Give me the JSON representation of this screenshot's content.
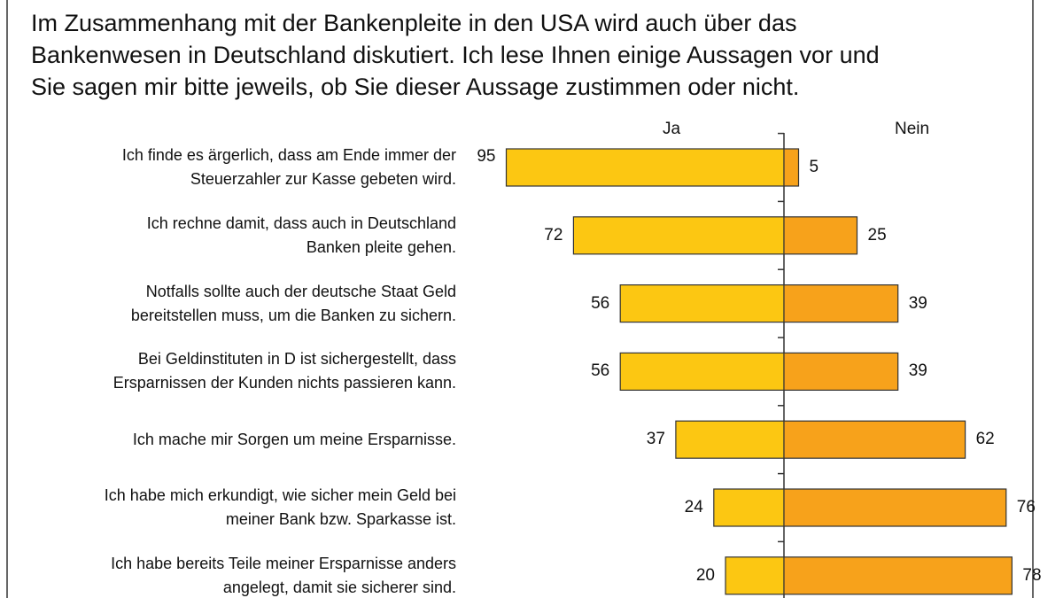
{
  "chart_data": {
    "type": "bar",
    "title": "Im Zusammenhang mit der Bankenpleite in den USA wird auch über das\nBankenwesen in Deutschland diskutiert. Ich lese Ihnen einige Aussagen vor und\nSie sagen mir bitte jeweils, ob Sie dieser Aussage zustimmen oder nicht.",
    "categories": [
      "Ich finde es ärgerlich, dass am Ende immer der\nSteuerzahler zur Kasse gebeten wird.",
      "Ich rechne damit, dass auch in Deutschland\nBanken pleite gehen.",
      "Notfalls sollte auch der deutsche Staat Geld\nbereitstellen muss, um die Banken zu sichern.",
      "Bei Geldinstituten in D ist sichergestellt, dass\nErsparnissen der Kunden nichts passieren kann.",
      "Ich mache mir Sorgen um meine Ersparnisse.",
      "Ich habe mich erkundigt, wie sicher mein Geld bei\nmeiner Bank bzw. Sparkasse ist.",
      "Ich habe bereits Teile meiner Ersparnisse anders\nangelegt, damit sie sicherer sind."
    ],
    "series": [
      {
        "name": "Ja",
        "color": "#fcc712",
        "values": [
          95,
          72,
          56,
          56,
          37,
          24,
          20
        ]
      },
      {
        "name": "Nein",
        "color": "#f7a21b",
        "values": [
          5,
          25,
          39,
          39,
          62,
          76,
          78
        ]
      }
    ]
  }
}
